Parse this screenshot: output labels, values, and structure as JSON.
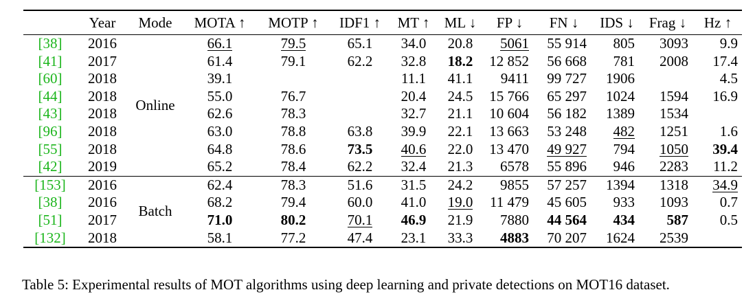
{
  "headers": [
    "",
    "Year",
    "Mode",
    "MOTA ↑",
    "MOTP ↑",
    "IDF1 ↑",
    "MT ↑",
    "ML ↓",
    "FP ↓",
    "FN ↓",
    "IDS ↓",
    "Frag ↓",
    "Hz ↑"
  ],
  "groups": [
    {
      "mode": "Online",
      "rows": [
        {
          "ref": "[38]",
          "year": "2016",
          "cells": [
            "66.1",
            "79.5",
            "65.1",
            "34.0",
            "20.8",
            "5061",
            "55 914",
            "805",
            "3093",
            "9.9"
          ],
          "bold": [],
          "underline": [
            0,
            1,
            5
          ]
        },
        {
          "ref": "[41]",
          "year": "2017",
          "cells": [
            "61.4",
            "79.1",
            "62.2",
            "32.8",
            "18.2",
            "12 852",
            "56 668",
            "781",
            "2008",
            "17.4"
          ],
          "bold": [
            4
          ],
          "underline": []
        },
        {
          "ref": "[60]",
          "year": "2018",
          "cells": [
            "39.1",
            "",
            "",
            "11.1",
            "41.1",
            "9411",
            "99 727",
            "1906",
            "",
            "4.5"
          ],
          "bold": [],
          "underline": []
        },
        {
          "ref": "[44]",
          "year": "2018",
          "cells": [
            "55.0",
            "76.7",
            "",
            "20.4",
            "24.5",
            "15 766",
            "65 297",
            "1024",
            "1594",
            "16.9"
          ],
          "bold": [],
          "underline": []
        },
        {
          "ref": "[43]",
          "year": "2018",
          "cells": [
            "62.6",
            "78.3",
            "",
            "32.7",
            "21.1",
            "10 604",
            "56 182",
            "1389",
            "1534",
            ""
          ],
          "bold": [],
          "underline": []
        },
        {
          "ref": "[96]",
          "year": "2018",
          "cells": [
            "63.0",
            "78.8",
            "63.8",
            "39.9",
            "22.1",
            "13 663",
            "53 248",
            "482",
            "1251",
            "1.6"
          ],
          "bold": [],
          "underline": [
            7
          ]
        },
        {
          "ref": "[55]",
          "year": "2018",
          "cells": [
            "64.8",
            "78.6",
            "73.5",
            "40.6",
            "22.0",
            "13 470",
            "49 927",
            "794",
            "1050",
            "39.4"
          ],
          "bold": [
            2,
            9
          ],
          "underline": [
            3,
            6,
            8
          ]
        },
        {
          "ref": "[42]",
          "year": "2019",
          "cells": [
            "65.2",
            "78.4",
            "62.2",
            "32.4",
            "21.3",
            "6578",
            "55 896",
            "946",
            "2283",
            "11.2"
          ],
          "bold": [],
          "underline": []
        }
      ]
    },
    {
      "mode": "Batch",
      "rows": [
        {
          "ref": "[153]",
          "year": "2016",
          "cells": [
            "62.4",
            "78.3",
            "51.6",
            "31.5",
            "24.2",
            "9855",
            "57 257",
            "1394",
            "1318",
            "34.9"
          ],
          "bold": [],
          "underline": [
            9
          ]
        },
        {
          "ref": "[38]",
          "year": "2016",
          "cells": [
            "68.2",
            "79.4",
            "60.0",
            "41.0",
            "19.0",
            "11 479",
            "45 605",
            "933",
            "1093",
            "0.7"
          ],
          "bold": [],
          "underline": [
            4
          ]
        },
        {
          "ref": "[51]",
          "year": "2017",
          "cells": [
            "71.0",
            "80.2",
            "70.1",
            "46.9",
            "21.9",
            "7880",
            "44 564",
            "434",
            "587",
            "0.5"
          ],
          "bold": [
            0,
            1,
            3,
            6,
            7,
            8
          ],
          "underline": [
            2
          ]
        },
        {
          "ref": "[132]",
          "year": "2018",
          "cells": [
            "58.1",
            "77.2",
            "47.4",
            "23.1",
            "33.3",
            "4883",
            "70 207",
            "1624",
            "2539",
            ""
          ],
          "bold": [
            5
          ],
          "underline": []
        }
      ]
    }
  ],
  "caption": "Table 5: Experimental results of MOT algorithms using deep learning and private detections on MOT16 dataset."
}
